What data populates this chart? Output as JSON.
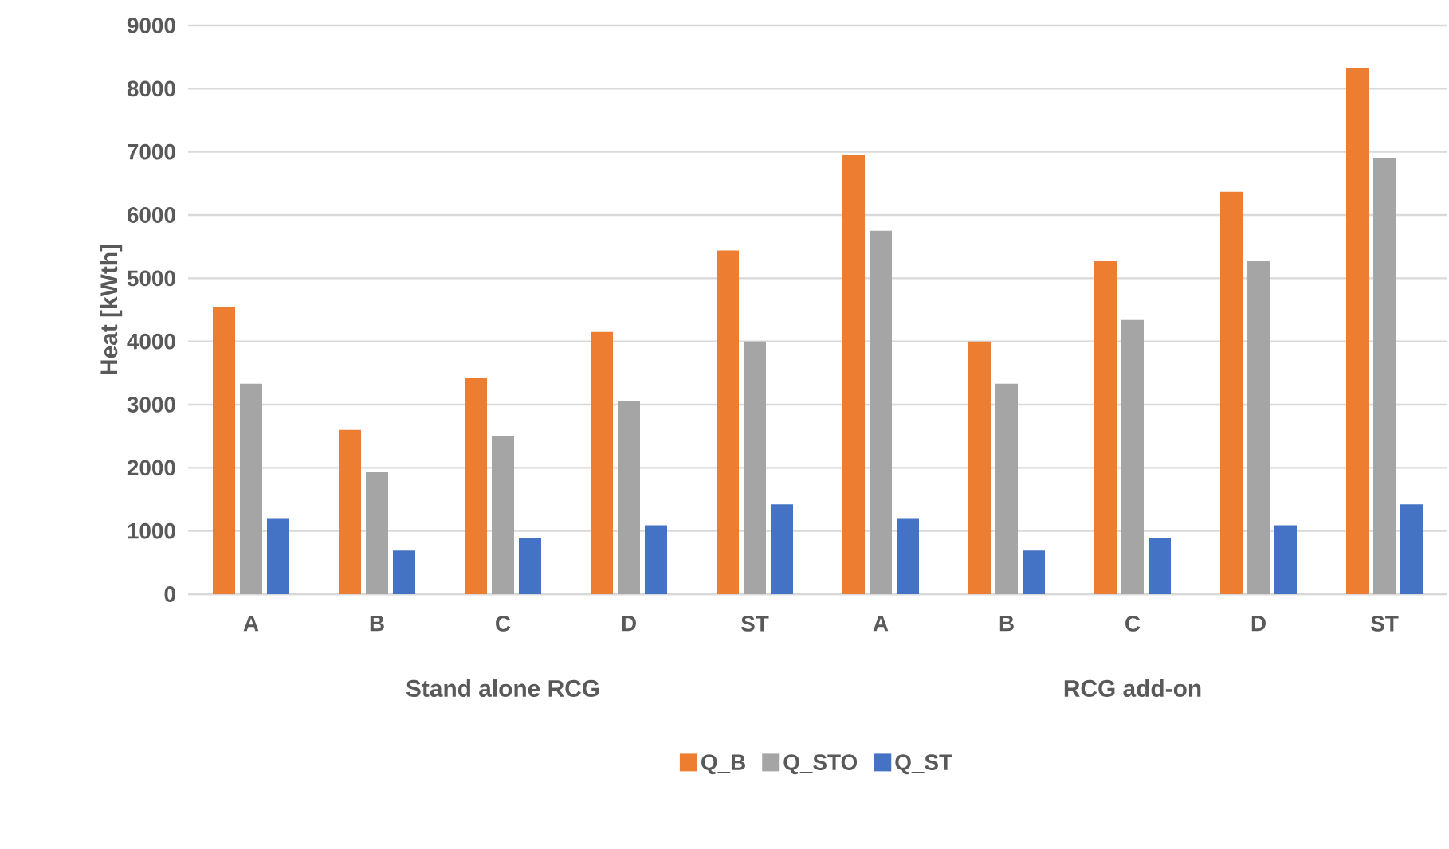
{
  "chart_data": {
    "type": "bar",
    "ylabel": "Heat [kWth]",
    "categories": [
      "A",
      "B",
      "C",
      "D",
      "ST",
      "A",
      "B",
      "C",
      "D",
      "ST"
    ],
    "series": [
      {
        "name": "Q_B",
        "color": "#ed7d31",
        "values": [
          4540,
          2600,
          3420,
          4150,
          5440,
          6950,
          4000,
          5270,
          6370,
          8330
        ]
      },
      {
        "name": "Q_STO",
        "color": "#a5a5a5",
        "values": [
          3330,
          1930,
          2510,
          3050,
          4000,
          5750,
          3330,
          4340,
          5270,
          6900
        ]
      },
      {
        "name": "Q_ST",
        "color": "#4472c4",
        "values": [
          1190,
          690,
          890,
          1090,
          1420,
          1190,
          690,
          890,
          1090,
          1420
        ]
      }
    ],
    "ylim": [
      0,
      9000
    ],
    "yticks": [
      0,
      1000,
      2000,
      3000,
      4000,
      5000,
      6000,
      7000,
      8000,
      9000
    ],
    "grid": "y",
    "legend": "bottom",
    "annotations": [
      "Stand alone RCG",
      "RCG add-on"
    ]
  }
}
